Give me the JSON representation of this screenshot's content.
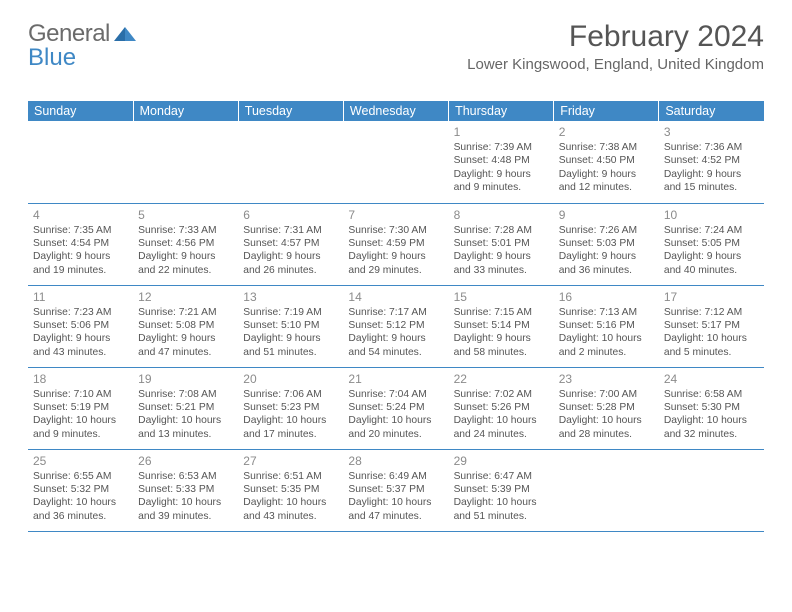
{
  "logo": {
    "text1": "General",
    "text2": "Blue"
  },
  "header": {
    "month_title": "February 2024",
    "location": "Lower Kingswood, England, United Kingdom"
  },
  "colors": {
    "header_bg": "#3f88c5",
    "header_text": "#ffffff",
    "border": "#3f88c5",
    "day_number": "#8b8b8b",
    "body_text": "#555555",
    "logo_gray": "#6b6b6b",
    "logo_blue": "#3f88c5"
  },
  "day_headers": [
    "Sunday",
    "Monday",
    "Tuesday",
    "Wednesday",
    "Thursday",
    "Friday",
    "Saturday"
  ],
  "weeks": [
    [
      null,
      null,
      null,
      null,
      {
        "n": "1",
        "sr": "7:39 AM",
        "ss": "4:48 PM",
        "dl": "9 hours and 9 minutes."
      },
      {
        "n": "2",
        "sr": "7:38 AM",
        "ss": "4:50 PM",
        "dl": "9 hours and 12 minutes."
      },
      {
        "n": "3",
        "sr": "7:36 AM",
        "ss": "4:52 PM",
        "dl": "9 hours and 15 minutes."
      }
    ],
    [
      {
        "n": "4",
        "sr": "7:35 AM",
        "ss": "4:54 PM",
        "dl": "9 hours and 19 minutes."
      },
      {
        "n": "5",
        "sr": "7:33 AM",
        "ss": "4:56 PM",
        "dl": "9 hours and 22 minutes."
      },
      {
        "n": "6",
        "sr": "7:31 AM",
        "ss": "4:57 PM",
        "dl": "9 hours and 26 minutes."
      },
      {
        "n": "7",
        "sr": "7:30 AM",
        "ss": "4:59 PM",
        "dl": "9 hours and 29 minutes."
      },
      {
        "n": "8",
        "sr": "7:28 AM",
        "ss": "5:01 PM",
        "dl": "9 hours and 33 minutes."
      },
      {
        "n": "9",
        "sr": "7:26 AM",
        "ss": "5:03 PM",
        "dl": "9 hours and 36 minutes."
      },
      {
        "n": "10",
        "sr": "7:24 AM",
        "ss": "5:05 PM",
        "dl": "9 hours and 40 minutes."
      }
    ],
    [
      {
        "n": "11",
        "sr": "7:23 AM",
        "ss": "5:06 PM",
        "dl": "9 hours and 43 minutes."
      },
      {
        "n": "12",
        "sr": "7:21 AM",
        "ss": "5:08 PM",
        "dl": "9 hours and 47 minutes."
      },
      {
        "n": "13",
        "sr": "7:19 AM",
        "ss": "5:10 PM",
        "dl": "9 hours and 51 minutes."
      },
      {
        "n": "14",
        "sr": "7:17 AM",
        "ss": "5:12 PM",
        "dl": "9 hours and 54 minutes."
      },
      {
        "n": "15",
        "sr": "7:15 AM",
        "ss": "5:14 PM",
        "dl": "9 hours and 58 minutes."
      },
      {
        "n": "16",
        "sr": "7:13 AM",
        "ss": "5:16 PM",
        "dl": "10 hours and 2 minutes."
      },
      {
        "n": "17",
        "sr": "7:12 AM",
        "ss": "5:17 PM",
        "dl": "10 hours and 5 minutes."
      }
    ],
    [
      {
        "n": "18",
        "sr": "7:10 AM",
        "ss": "5:19 PM",
        "dl": "10 hours and 9 minutes."
      },
      {
        "n": "19",
        "sr": "7:08 AM",
        "ss": "5:21 PM",
        "dl": "10 hours and 13 minutes."
      },
      {
        "n": "20",
        "sr": "7:06 AM",
        "ss": "5:23 PM",
        "dl": "10 hours and 17 minutes."
      },
      {
        "n": "21",
        "sr": "7:04 AM",
        "ss": "5:24 PM",
        "dl": "10 hours and 20 minutes."
      },
      {
        "n": "22",
        "sr": "7:02 AM",
        "ss": "5:26 PM",
        "dl": "10 hours and 24 minutes."
      },
      {
        "n": "23",
        "sr": "7:00 AM",
        "ss": "5:28 PM",
        "dl": "10 hours and 28 minutes."
      },
      {
        "n": "24",
        "sr": "6:58 AM",
        "ss": "5:30 PM",
        "dl": "10 hours and 32 minutes."
      }
    ],
    [
      {
        "n": "25",
        "sr": "6:55 AM",
        "ss": "5:32 PM",
        "dl": "10 hours and 36 minutes."
      },
      {
        "n": "26",
        "sr": "6:53 AM",
        "ss": "5:33 PM",
        "dl": "10 hours and 39 minutes."
      },
      {
        "n": "27",
        "sr": "6:51 AM",
        "ss": "5:35 PM",
        "dl": "10 hours and 43 minutes."
      },
      {
        "n": "28",
        "sr": "6:49 AM",
        "ss": "5:37 PM",
        "dl": "10 hours and 47 minutes."
      },
      {
        "n": "29",
        "sr": "6:47 AM",
        "ss": "5:39 PM",
        "dl": "10 hours and 51 minutes."
      },
      null,
      null
    ]
  ],
  "labels": {
    "sunrise_prefix": "Sunrise: ",
    "sunset_prefix": "Sunset: ",
    "daylight_prefix": "Daylight: "
  }
}
